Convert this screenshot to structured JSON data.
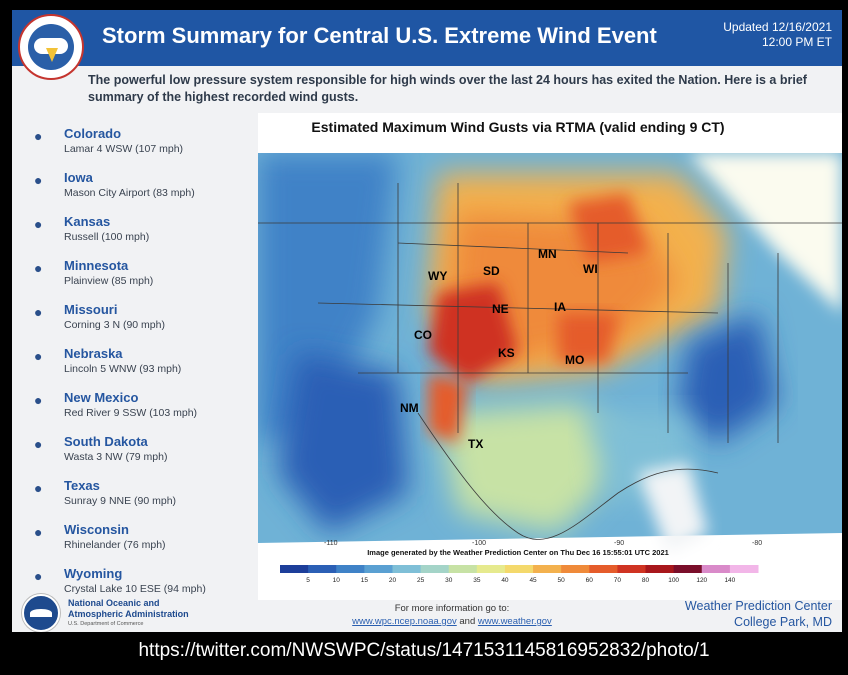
{
  "header": {
    "title": "Storm Summary for Central U.S. Extreme Wind Event",
    "updated_date": "Updated 12/16/2021",
    "updated_time": "12:00 PM ET",
    "logo_text": "NATIONAL WEATHER SERVICE"
  },
  "intro": "The powerful low pressure system responsible for high winds over the last 24 hours has exited the Nation. Here is a brief summary of the highest recorded wind gusts.",
  "states": [
    {
      "name": "Colorado",
      "detail": "Lamar 4 WSW (107 mph)"
    },
    {
      "name": "Iowa",
      "detail": "Mason City Airport (83 mph)"
    },
    {
      "name": "Kansas",
      "detail": "Russell (100 mph)"
    },
    {
      "name": "Minnesota",
      "detail": "Plainview (85 mph)"
    },
    {
      "name": "Missouri",
      "detail": "Corning 3 N (90 mph)"
    },
    {
      "name": "Nebraska",
      "detail": "Lincoln 5 WNW (93 mph)"
    },
    {
      "name": "New Mexico",
      "detail": "Red River 9 SSW (103 mph)"
    },
    {
      "name": "South Dakota",
      "detail": "Wasta 3 NW (79 mph)"
    },
    {
      "name": "Texas",
      "detail": "Sunray 9 NNE (90 mph)"
    },
    {
      "name": "Wisconsin",
      "detail": "Rhinelander (76 mph)"
    },
    {
      "name": "Wyoming",
      "detail": "Crystal Lake 10 ESE (94 mph)"
    }
  ],
  "map": {
    "title": "Estimated Maximum Wind Gusts via RTMA (valid ending 9 CT)",
    "state_labels": [
      "WY",
      "SD",
      "MN",
      "WI",
      "NE",
      "IA",
      "CO",
      "KS",
      "MO",
      "NM",
      "TX"
    ],
    "credit": "Image generated by the Weather Prediction Center on Thu Dec 16 15:55:01 UTC 2021",
    "lon_labels": [
      "-110",
      "-100",
      "-90",
      "-80"
    ],
    "colorbar_labels": [
      "5",
      "10",
      "15",
      "20",
      "25",
      "30",
      "35",
      "40",
      "45",
      "50",
      "60",
      "70",
      "80",
      "100",
      "120",
      "140"
    ],
    "colorbar_colors": [
      "#1d3e9a",
      "#2b5fb5",
      "#3f82c7",
      "#5aa0d2",
      "#7fbfd7",
      "#a4d4c8",
      "#c7e2a5",
      "#e6ea8e",
      "#f4d96c",
      "#f3b14e",
      "#ef8a3a",
      "#e55c2b",
      "#cf3322",
      "#a8171c",
      "#7a0e2a",
      "#d98ac9",
      "#f2b6e8"
    ]
  },
  "footer": {
    "noaa_name_line1": "National Oceanic and",
    "noaa_name_line2": "Atmospheric Administration",
    "noaa_dept": "U.S. Department of Commerce",
    "more_info": "For more information go to:",
    "link1": "www.wpc.ncep.noaa.gov",
    "link_and": "and",
    "link2": "www.weather.gov",
    "wpc_line1": "Weather Prediction Center",
    "wpc_line2": "College Park, MD"
  },
  "source_url": "https://twitter.com/NWSWPC/status/1471531145816952832/photo/1"
}
